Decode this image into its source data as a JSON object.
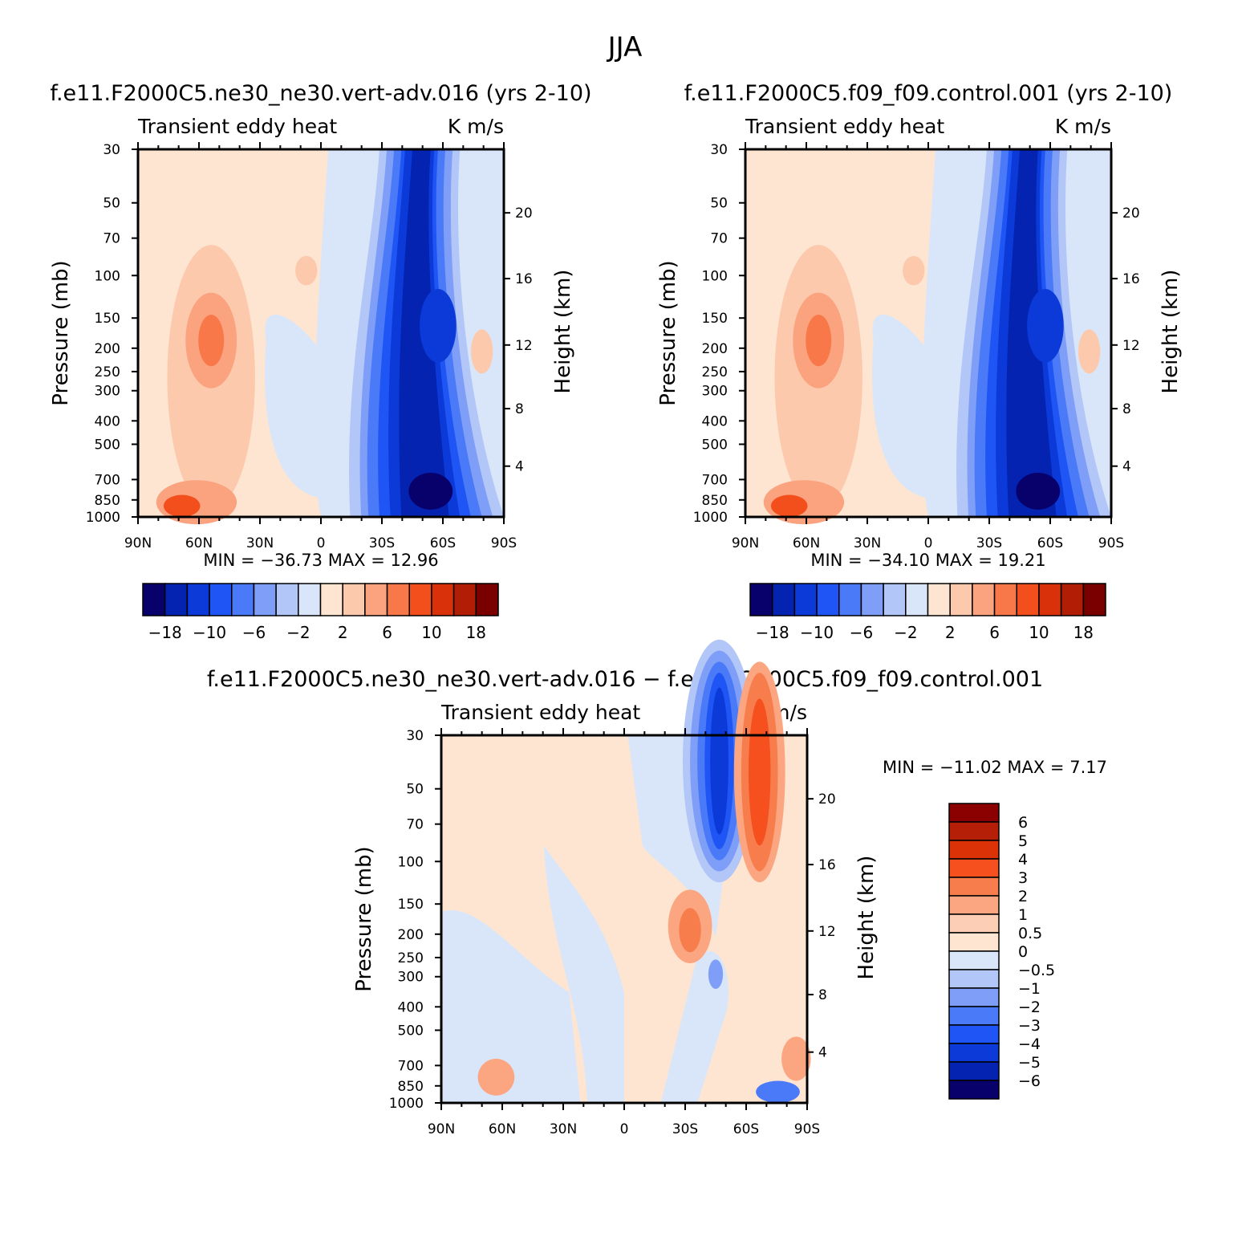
{
  "figure_title": "JJA",
  "panels": [
    {
      "title": "f.e11.F2000C5.ne30_ne30.vert-adv.016 (yrs 2-10)",
      "left_label": "Transient eddy heat",
      "right_label": "K m/s",
      "stats": "MIN = −36.73   MAX =   12.96"
    },
    {
      "title": "f.e11.F2000C5.f09_f09.control.001 (yrs 2-10)",
      "left_label": "Transient eddy heat",
      "right_label": "K m/s",
      "stats": "MIN = −34.10   MAX =   19.21"
    },
    {
      "title": "f.e11.F2000C5.ne30_ne30.vert-adv.016 − f.e11.F2000C5.f09_f09.control.001",
      "left_label": "Transient eddy heat",
      "right_label": "K m/s",
      "stats": "MIN = −11.02   MAX =    7.17"
    }
  ],
  "colorbar_main": {
    "labels": [
      "−18",
      "−10",
      "−6",
      "−2",
      "2",
      "6",
      "10",
      "18"
    ],
    "colors": [
      "#08006b",
      "#0323b0",
      "#0b3ad8",
      "#1f55f5",
      "#4a7af7",
      "#7f9ef7",
      "#b2c6f7",
      "#d9e6f9",
      "#fde5d2",
      "#fcc9ad",
      "#fba27f",
      "#f87849",
      "#f24f1c",
      "#d9310a",
      "#b21e05",
      "#7a0000"
    ]
  },
  "colorbar_diff": {
    "labels": [
      "6",
      "5",
      "4",
      "3",
      "2",
      "1",
      "0.5",
      "0",
      "−0.5",
      "−1",
      "−2",
      "−3",
      "−4",
      "−5",
      "−6"
    ],
    "colors": [
      "#8b0000",
      "#b51f07",
      "#db3208",
      "#f5501e",
      "#f87d4d",
      "#fba680",
      "#fdceb6",
      "#fde5d2",
      "#d9e6f9",
      "#b2c6f7",
      "#7f9ef7",
      "#4a7af7",
      "#1f55f5",
      "#0b3ad8",
      "#0323b0",
      "#08006b"
    ]
  },
  "chart_data": [
    {
      "type": "heatmap",
      "title": "f.e11.F2000C5.ne30_ne30.vert-adv.016 (yrs 2-10)",
      "subtitle": "Transient eddy heat",
      "units": "K m/s",
      "xlabel": "",
      "ylabel": "Pressure (mb)",
      "y2label": "Height (km)",
      "x_ticks": [
        "90N",
        "60N",
        "30N",
        "0",
        "30S",
        "60S",
        "90S"
      ],
      "y_ticks": [
        30,
        50,
        70,
        100,
        150,
        200,
        250,
        300,
        400,
        500,
        700,
        850,
        1000
      ],
      "y2_ticks": [
        20,
        16,
        12,
        8,
        4
      ],
      "ylim": [
        1000,
        30
      ],
      "y_scale": "log",
      "min": -36.73,
      "max": 12.96,
      "levels": [
        -18,
        -14,
        -10,
        -8,
        -6,
        -4,
        -2,
        0,
        2,
        4,
        6,
        8,
        10,
        14,
        18
      ]
    },
    {
      "type": "heatmap",
      "title": "f.e11.F2000C5.f09_f09.control.001 (yrs 2-10)",
      "subtitle": "Transient eddy heat",
      "units": "K m/s",
      "xlabel": "",
      "ylabel": "Pressure (mb)",
      "y2label": "Height (km)",
      "x_ticks": [
        "90N",
        "60N",
        "30N",
        "0",
        "30S",
        "60S",
        "90S"
      ],
      "y_ticks": [
        30,
        50,
        70,
        100,
        150,
        200,
        250,
        300,
        400,
        500,
        700,
        850,
        1000
      ],
      "y2_ticks": [
        20,
        16,
        12,
        8,
        4
      ],
      "ylim": [
        1000,
        30
      ],
      "y_scale": "log",
      "min": -34.1,
      "max": 19.21,
      "levels": [
        -18,
        -14,
        -10,
        -8,
        -6,
        -4,
        -2,
        0,
        2,
        4,
        6,
        8,
        10,
        14,
        18
      ]
    },
    {
      "type": "heatmap",
      "title": "f.e11.F2000C5.ne30_ne30.vert-adv.016 − f.e11.F2000C5.f09_f09.control.001",
      "subtitle": "Transient eddy heat",
      "units": "K m/s",
      "xlabel": "",
      "ylabel": "Pressure (mb)",
      "y2label": "Height (km)",
      "x_ticks": [
        "90N",
        "60N",
        "30N",
        "0",
        "30S",
        "60S",
        "90S"
      ],
      "y_ticks": [
        30,
        50,
        70,
        100,
        150,
        200,
        250,
        300,
        400,
        500,
        700,
        850,
        1000
      ],
      "y2_ticks": [
        20,
        16,
        12,
        8,
        4
      ],
      "ylim": [
        1000,
        30
      ],
      "y_scale": "log",
      "min": -11.02,
      "max": 7.17,
      "levels": [
        -6,
        -5,
        -4,
        -3,
        -2,
        -1,
        -0.5,
        0,
        0.5,
        1,
        2,
        3,
        4,
        5,
        6
      ]
    }
  ]
}
